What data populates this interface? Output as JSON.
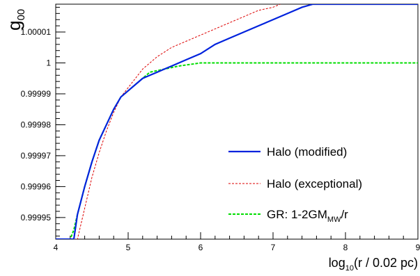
{
  "chart_data": {
    "type": "line",
    "title": "",
    "xlabel": {
      "prefix": "log",
      "sub": "10",
      "suffix": "(r / 0.02 pc)"
    },
    "ylabel": {
      "main": "g",
      "sub": "00"
    },
    "xlim": [
      4,
      9
    ],
    "ylim": [
      0.999943,
      1.000019
    ],
    "x_tick_labels": [
      "4",
      "5",
      "6",
      "7",
      "8",
      "9"
    ],
    "x_major_ticks": [
      4,
      5,
      6,
      7,
      8,
      9
    ],
    "y_ticks": [
      {
        "value": 0.99995,
        "label": "0.99995"
      },
      {
        "value": 0.99996,
        "label": "0.99996"
      },
      {
        "value": 0.99997,
        "label": "0.99997"
      },
      {
        "value": 0.99998,
        "label": "0.99998"
      },
      {
        "value": 0.99999,
        "label": "0.99999"
      },
      {
        "value": 1.0,
        "label": "1"
      },
      {
        "value": 1.00001,
        "label": "1.00001"
      }
    ],
    "grid": false,
    "legend_position": "bottom-right",
    "series": [
      {
        "id": "modified",
        "name": "Halo (modified)",
        "color": "#0022dd",
        "style": "solid",
        "points": [
          [
            4.0,
            0.999943
          ],
          [
            4.22,
            0.999943
          ],
          [
            4.25,
            0.999943
          ],
          [
            4.3,
            0.999951
          ],
          [
            4.4,
            0.99996
          ],
          [
            4.5,
            0.999968
          ],
          [
            4.6,
            0.999975
          ],
          [
            4.7,
            0.99998
          ],
          [
            4.8,
            0.999985
          ],
          [
            4.9,
            0.999989
          ],
          [
            5.0,
            0.999991
          ],
          [
            5.1,
            0.999993
          ],
          [
            5.2,
            0.999995
          ],
          [
            5.3,
            0.999996
          ],
          [
            5.4,
            0.999997
          ],
          [
            5.5,
            0.999998
          ],
          [
            5.6,
            0.999999
          ],
          [
            5.7,
            1.0
          ],
          [
            5.8,
            1.000001
          ],
          [
            6.0,
            1.000003
          ],
          [
            6.2,
            1.000006
          ],
          [
            6.4,
            1.000008
          ],
          [
            6.6,
            1.00001
          ],
          [
            6.8,
            1.000012
          ],
          [
            7.0,
            1.000014
          ],
          [
            7.2,
            1.000016
          ],
          [
            7.4,
            1.000018
          ],
          [
            7.55,
            1.000019
          ],
          [
            9.0,
            1.000019
          ]
        ]
      },
      {
        "id": "exceptional",
        "name": "Halo (exceptional)",
        "color": "#dd0000",
        "style": "dashed",
        "points": [
          [
            4.0,
            0.999943
          ],
          [
            4.28,
            0.999943
          ],
          [
            4.3,
            0.999943
          ],
          [
            4.4,
            0.999953
          ],
          [
            4.5,
            0.999963
          ],
          [
            4.6,
            0.999971
          ],
          [
            4.7,
            0.999978
          ],
          [
            4.8,
            0.999984
          ],
          [
            4.9,
            0.999989
          ],
          [
            5.0,
            0.999992
          ],
          [
            5.1,
            0.999995
          ],
          [
            5.2,
            0.999998
          ],
          [
            5.3,
            1.0
          ],
          [
            5.4,
            1.000002
          ],
          [
            5.6,
            1.000005
          ],
          [
            5.8,
            1.000007
          ],
          [
            6.0,
            1.000009
          ],
          [
            6.2,
            1.000011
          ],
          [
            6.4,
            1.000013
          ],
          [
            6.6,
            1.000015
          ],
          [
            6.8,
            1.000017
          ],
          [
            7.0,
            1.000018
          ],
          [
            7.1,
            1.000019
          ]
        ]
      },
      {
        "id": "gr",
        "name": "GR: 1-2GM",
        "name_sub": "MW",
        "name_suffix": "/r",
        "color": "#00dd00",
        "style": "dashed",
        "points": [
          [
            4.0,
            0.999943
          ],
          [
            4.2,
            0.999943
          ],
          [
            4.25,
            0.999946
          ],
          [
            4.3,
            0.999951
          ],
          [
            4.4,
            0.99996
          ],
          [
            4.5,
            0.999968
          ],
          [
            4.6,
            0.999975
          ],
          [
            4.7,
            0.99998
          ],
          [
            4.8,
            0.999985
          ],
          [
            4.9,
            0.999989
          ],
          [
            5.0,
            0.999991
          ],
          [
            5.1,
            0.999993
          ],
          [
            5.2,
            0.999995
          ],
          [
            5.3,
            0.999997
          ],
          [
            5.5,
            0.999998
          ],
          [
            5.7,
            0.999999
          ],
          [
            6.0,
            1.0
          ],
          [
            6.5,
            1.0
          ],
          [
            7.0,
            1.0
          ],
          [
            9.0,
            1.0
          ]
        ]
      }
    ]
  }
}
